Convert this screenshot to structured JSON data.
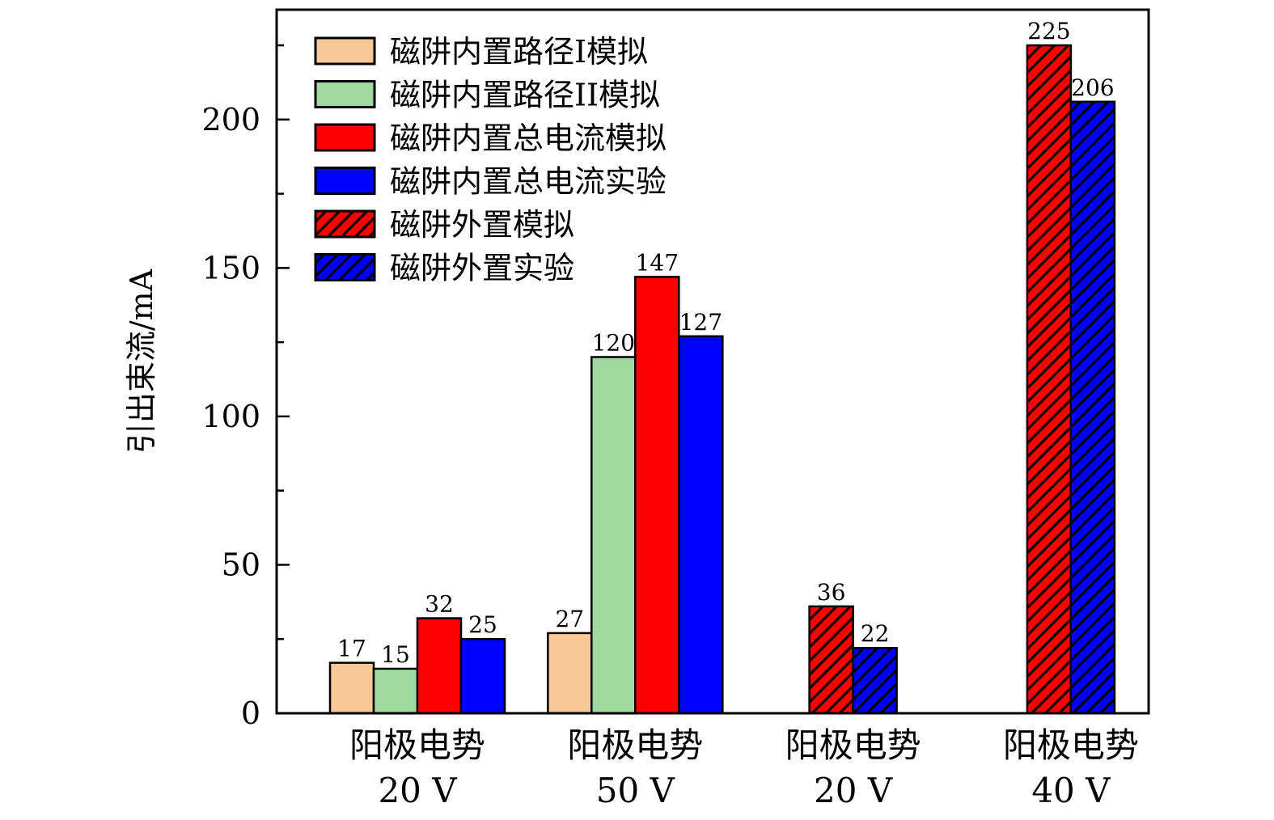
{
  "chart_data": {
    "type": "bar",
    "title": "",
    "ylabel": "引出束流/mA",
    "xlabel": "",
    "ylim": [
      0,
      237
    ],
    "yticks": [
      0,
      50,
      100,
      150,
      200
    ],
    "yminor_step": 25,
    "grid": false,
    "legend_position": "top-left",
    "categories": [
      {
        "line1": "阳极电势",
        "line2": "20 V"
      },
      {
        "line1": "阳极电势",
        "line2": "50 V"
      },
      {
        "line1": "阳极电势",
        "line2": "20 V"
      },
      {
        "line1": "阳极电势",
        "line2": "40 V"
      }
    ],
    "series": [
      {
        "name": "磁阱内置路径I模拟",
        "color": "#F9C898",
        "hatch": false,
        "values": [
          17,
          27,
          null,
          null
        ]
      },
      {
        "name": "磁阱内置路径II模拟",
        "color": "#A0D8A0",
        "hatch": false,
        "values": [
          15,
          120,
          null,
          null
        ]
      },
      {
        "name": "磁阱内置总电流模拟",
        "color": "#FF0000",
        "hatch": false,
        "values": [
          32,
          147,
          null,
          null
        ]
      },
      {
        "name": "磁阱内置总电流实验",
        "color": "#0000FF",
        "hatch": false,
        "values": [
          25,
          127,
          null,
          null
        ]
      },
      {
        "name": "磁阱外置模拟",
        "color": "#FF0000",
        "hatch": true,
        "values": [
          null,
          null,
          36,
          225
        ]
      },
      {
        "name": "磁阱外置实验",
        "color": "#0000FF",
        "hatch": true,
        "values": [
          null,
          null,
          22,
          206
        ]
      }
    ]
  }
}
